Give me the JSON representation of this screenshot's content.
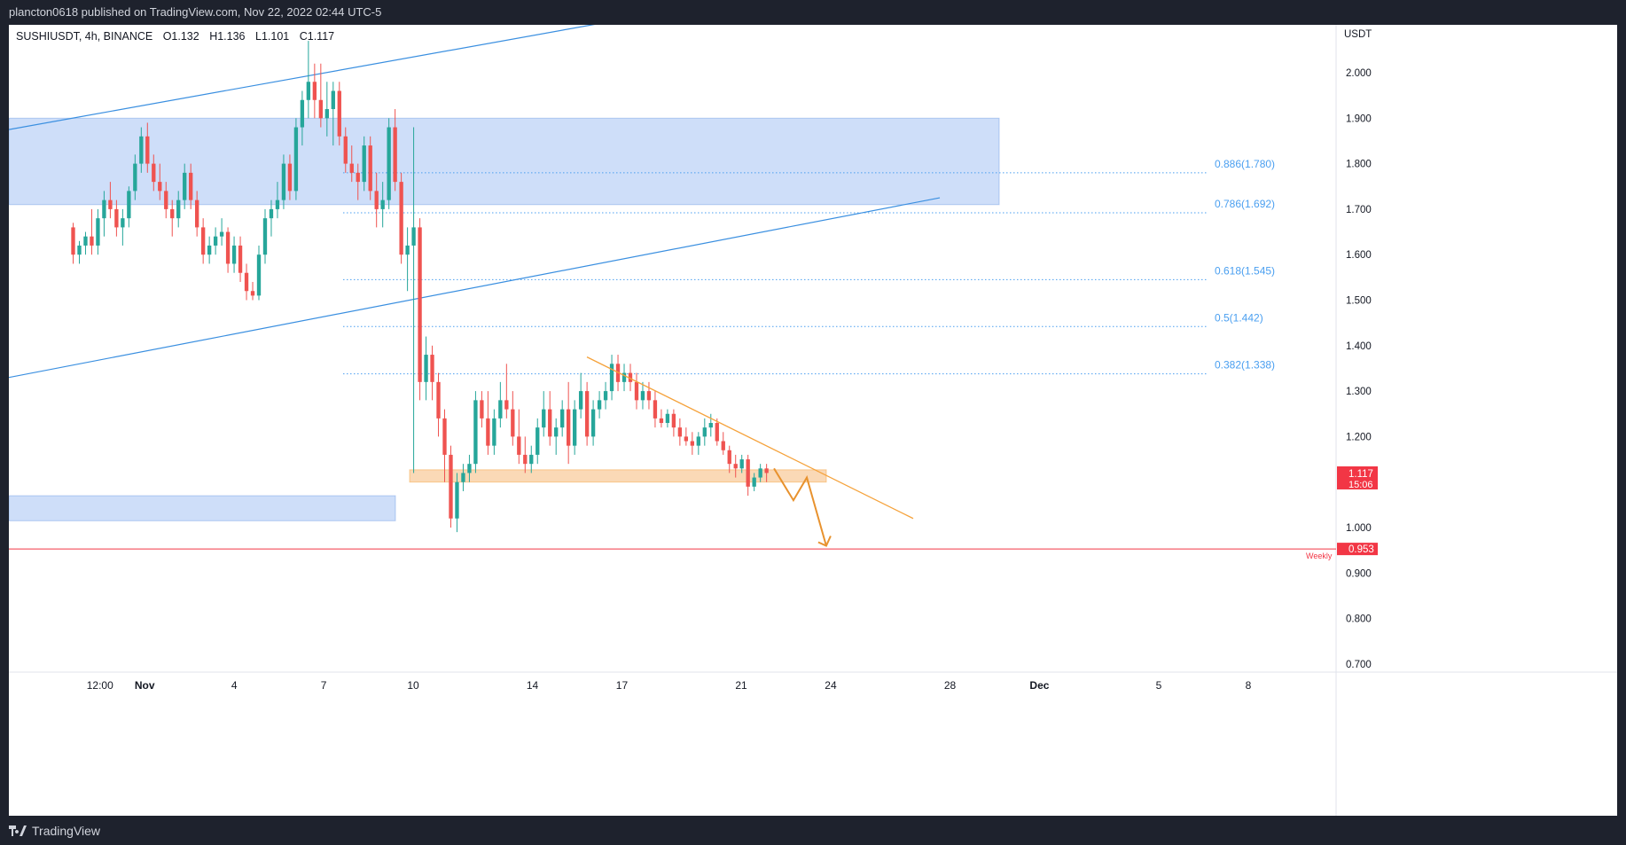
{
  "header": {
    "published": "plancton0618 published on TradingView.com, Nov 22, 2022 02:44 UTC-5"
  },
  "footer": {
    "brand": "TradingView"
  },
  "chart_data": {
    "type": "candlestick",
    "symbol": "SUSHIUSDT, 4h, BINANCE",
    "ohlc_label": {
      "o": "O1.132",
      "h": "H1.136",
      "l": "L1.101",
      "c": "C1.117"
    },
    "currency": "USDT",
    "y_ticks": [
      0.7,
      0.8,
      0.9,
      1.0,
      1.1,
      1.2,
      1.3,
      1.4,
      1.5,
      1.6,
      1.7,
      1.8,
      1.9,
      2.0
    ],
    "y_tick_labels": [
      "0.700",
      "0.800",
      "0.900",
      "1.000",
      "1.100",
      "1.200",
      "1.300",
      "1.400",
      "1.500",
      "1.600",
      "1.700",
      "1.800",
      "1.900",
      "2.000"
    ],
    "x_ticks": [
      {
        "label": "12:00",
        "day": -0.5
      },
      {
        "label": "Nov",
        "day": 1
      },
      {
        "label": "4",
        "day": 4
      },
      {
        "label": "7",
        "day": 7
      },
      {
        "label": "10",
        "day": 10
      },
      {
        "label": "14",
        "day": 14
      },
      {
        "label": "17",
        "day": 17
      },
      {
        "label": "21",
        "day": 21
      },
      {
        "label": "24",
        "day": 24
      },
      {
        "label": "28",
        "day": 28
      },
      {
        "label": "Dec",
        "day": 31
      },
      {
        "label": "5",
        "day": 35
      },
      {
        "label": "8",
        "day": 38
      }
    ],
    "candles": [
      [
        1.66,
        1.67,
        1.58,
        1.6
      ],
      [
        1.6,
        1.63,
        1.58,
        1.62
      ],
      [
        1.62,
        1.65,
        1.6,
        1.64
      ],
      [
        1.64,
        1.7,
        1.6,
        1.62
      ],
      [
        1.62,
        1.7,
        1.6,
        1.68
      ],
      [
        1.68,
        1.74,
        1.64,
        1.72
      ],
      [
        1.72,
        1.76,
        1.68,
        1.7
      ],
      [
        1.7,
        1.72,
        1.64,
        1.66
      ],
      [
        1.66,
        1.7,
        1.62,
        1.68
      ],
      [
        1.68,
        1.75,
        1.66,
        1.74
      ],
      [
        1.74,
        1.82,
        1.72,
        1.8
      ],
      [
        1.8,
        1.88,
        1.78,
        1.86
      ],
      [
        1.86,
        1.89,
        1.78,
        1.8
      ],
      [
        1.8,
        1.82,
        1.74,
        1.76
      ],
      [
        1.76,
        1.8,
        1.72,
        1.74
      ],
      [
        1.74,
        1.76,
        1.68,
        1.7
      ],
      [
        1.7,
        1.72,
        1.64,
        1.68
      ],
      [
        1.68,
        1.74,
        1.66,
        1.72
      ],
      [
        1.72,
        1.8,
        1.7,
        1.78
      ],
      [
        1.78,
        1.8,
        1.7,
        1.72
      ],
      [
        1.72,
        1.74,
        1.64,
        1.66
      ],
      [
        1.66,
        1.68,
        1.58,
        1.6
      ],
      [
        1.6,
        1.64,
        1.58,
        1.62
      ],
      [
        1.62,
        1.66,
        1.6,
        1.64
      ],
      [
        1.64,
        1.68,
        1.62,
        1.65
      ],
      [
        1.65,
        1.66,
        1.56,
        1.58
      ],
      [
        1.58,
        1.64,
        1.56,
        1.62
      ],
      [
        1.62,
        1.64,
        1.54,
        1.56
      ],
      [
        1.56,
        1.58,
        1.5,
        1.52
      ],
      [
        1.52,
        1.54,
        1.5,
        1.51
      ],
      [
        1.51,
        1.62,
        1.5,
        1.6
      ],
      [
        1.6,
        1.7,
        1.58,
        1.68
      ],
      [
        1.68,
        1.72,
        1.64,
        1.7
      ],
      [
        1.7,
        1.76,
        1.68,
        1.72
      ],
      [
        1.72,
        1.82,
        1.7,
        1.8
      ],
      [
        1.8,
        1.82,
        1.72,
        1.74
      ],
      [
        1.74,
        1.9,
        1.72,
        1.88
      ],
      [
        1.88,
        1.96,
        1.84,
        1.94
      ],
      [
        1.94,
        2.07,
        1.9,
        1.98
      ],
      [
        1.98,
        2.02,
        1.9,
        1.94
      ],
      [
        1.94,
        2.02,
        1.88,
        1.9
      ],
      [
        1.9,
        1.98,
        1.86,
        1.92
      ],
      [
        1.92,
        1.98,
        1.84,
        1.96
      ],
      [
        1.96,
        1.98,
        1.84,
        1.86
      ],
      [
        1.86,
        1.88,
        1.78,
        1.8
      ],
      [
        1.8,
        1.84,
        1.76,
        1.78
      ],
      [
        1.78,
        1.8,
        1.72,
        1.76
      ],
      [
        1.76,
        1.86,
        1.74,
        1.84
      ],
      [
        1.84,
        1.86,
        1.72,
        1.74
      ],
      [
        1.74,
        1.78,
        1.66,
        1.7
      ],
      [
        1.7,
        1.76,
        1.66,
        1.72
      ],
      [
        1.72,
        1.9,
        1.7,
        1.88
      ],
      [
        1.88,
        1.92,
        1.74,
        1.76
      ],
      [
        1.76,
        1.78,
        1.58,
        1.6
      ],
      [
        1.6,
        1.66,
        1.52,
        1.62
      ],
      [
        1.62,
        1.88,
        1.12,
        1.66
      ],
      [
        1.66,
        1.68,
        1.28,
        1.32
      ],
      [
        1.32,
        1.42,
        1.28,
        1.38
      ],
      [
        1.38,
        1.4,
        1.28,
        1.32
      ],
      [
        1.32,
        1.34,
        1.2,
        1.24
      ],
      [
        1.24,
        1.26,
        1.1,
        1.16
      ],
      [
        1.16,
        1.18,
        1.0,
        1.02
      ],
      [
        1.02,
        1.12,
        0.99,
        1.1
      ],
      [
        1.1,
        1.14,
        1.08,
        1.12
      ],
      [
        1.12,
        1.16,
        1.1,
        1.14
      ],
      [
        1.14,
        1.3,
        1.12,
        1.28
      ],
      [
        1.28,
        1.3,
        1.22,
        1.24
      ],
      [
        1.24,
        1.3,
        1.16,
        1.18
      ],
      [
        1.18,
        1.26,
        1.16,
        1.24
      ],
      [
        1.24,
        1.32,
        1.22,
        1.28
      ],
      [
        1.28,
        1.36,
        1.24,
        1.26
      ],
      [
        1.26,
        1.3,
        1.18,
        1.2
      ],
      [
        1.2,
        1.26,
        1.14,
        1.16
      ],
      [
        1.16,
        1.2,
        1.12,
        1.14
      ],
      [
        1.14,
        1.18,
        1.12,
        1.16
      ],
      [
        1.16,
        1.24,
        1.14,
        1.22
      ],
      [
        1.22,
        1.3,
        1.2,
        1.26
      ],
      [
        1.26,
        1.3,
        1.18,
        1.2
      ],
      [
        1.2,
        1.24,
        1.16,
        1.22
      ],
      [
        1.22,
        1.28,
        1.2,
        1.26
      ],
      [
        1.26,
        1.32,
        1.14,
        1.18
      ],
      [
        1.18,
        1.28,
        1.16,
        1.26
      ],
      [
        1.26,
        1.34,
        1.24,
        1.3
      ],
      [
        1.3,
        1.32,
        1.18,
        1.2
      ],
      [
        1.2,
        1.28,
        1.18,
        1.26
      ],
      [
        1.26,
        1.3,
        1.24,
        1.28
      ],
      [
        1.28,
        1.32,
        1.26,
        1.3
      ],
      [
        1.3,
        1.38,
        1.28,
        1.36
      ],
      [
        1.36,
        1.38,
        1.3,
        1.32
      ],
      [
        1.32,
        1.36,
        1.3,
        1.34
      ],
      [
        1.34,
        1.36,
        1.3,
        1.32
      ],
      [
        1.32,
        1.34,
        1.26,
        1.28
      ],
      [
        1.28,
        1.32,
        1.26,
        1.3
      ],
      [
        1.3,
        1.32,
        1.26,
        1.28
      ],
      [
        1.28,
        1.3,
        1.22,
        1.24
      ],
      [
        1.24,
        1.26,
        1.22,
        1.23
      ],
      [
        1.23,
        1.26,
        1.22,
        1.25
      ],
      [
        1.25,
        1.26,
        1.2,
        1.22
      ],
      [
        1.22,
        1.24,
        1.18,
        1.2
      ],
      [
        1.2,
        1.22,
        1.18,
        1.19
      ],
      [
        1.19,
        1.21,
        1.16,
        1.18
      ],
      [
        1.18,
        1.21,
        1.16,
        1.2
      ],
      [
        1.2,
        1.24,
        1.18,
        1.22
      ],
      [
        1.22,
        1.25,
        1.2,
        1.23
      ],
      [
        1.23,
        1.24,
        1.18,
        1.19
      ],
      [
        1.19,
        1.21,
        1.16,
        1.17
      ],
      [
        1.17,
        1.18,
        1.12,
        1.14
      ],
      [
        1.14,
        1.16,
        1.11,
        1.13
      ],
      [
        1.13,
        1.16,
        1.12,
        1.15
      ],
      [
        1.15,
        1.16,
        1.07,
        1.09
      ],
      [
        1.09,
        1.12,
        1.08,
        1.11
      ],
      [
        1.11,
        1.14,
        1.1,
        1.13
      ],
      [
        1.13,
        1.14,
        1.1,
        1.12
      ]
    ],
    "fib_levels": [
      {
        "label": "0.886(1.780)",
        "value": 1.78
      },
      {
        "label": "0.786(1.692)",
        "value": 1.692
      },
      {
        "label": "0.618(1.545)",
        "value": 1.545
      },
      {
        "label": "0.5(1.442)",
        "value": 1.442
      },
      {
        "label": "0.382(1.338)",
        "value": 1.338
      }
    ],
    "last_price": {
      "value": 1.117,
      "label": "1.117",
      "timer": "15:06"
    },
    "weekly_level": {
      "value": 0.953,
      "label": "0.953",
      "tag": "Weekly"
    },
    "colors": {
      "up": "#26a69a",
      "down": "#ef5350",
      "zone": "#bdd3f7",
      "zone_border": "#5b8fe0",
      "trend": "#3a8fe0",
      "orange": "#f5a23b",
      "weekly": "#f23645",
      "fib": "#4a9ff0"
    }
  }
}
